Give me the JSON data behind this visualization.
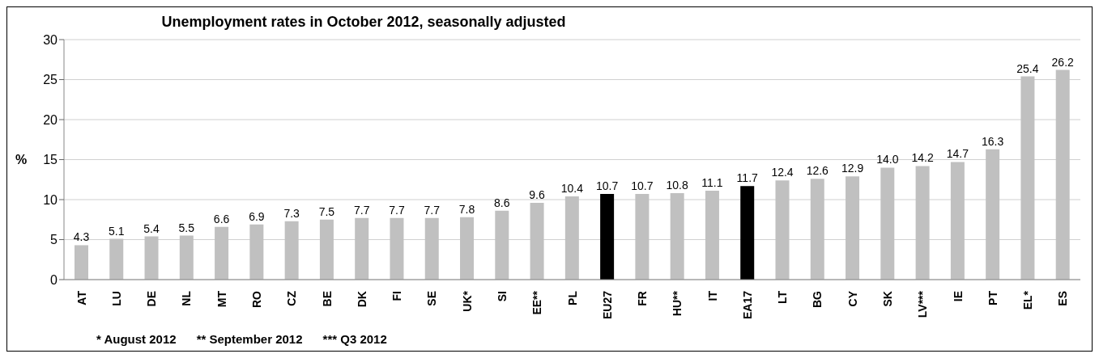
{
  "chart_data": {
    "type": "bar",
    "title": "Unemployment rates in October 2012, seasonally adjusted",
    "ylabel": "%",
    "categories": [
      "AT",
      "LU",
      "DE",
      "NL",
      "MT",
      "RO",
      "CZ",
      "BE",
      "DK",
      "FI",
      "SE",
      "UK*",
      "SI",
      "EE**",
      "PL",
      "EU27",
      "FR",
      "HU**",
      "IT",
      "EA17",
      "LT",
      "BG",
      "CY",
      "SK",
      "LV***",
      "IE",
      "PT",
      "EL*",
      "ES"
    ],
    "values": [
      4.3,
      5.1,
      5.4,
      5.5,
      6.6,
      6.9,
      7.3,
      7.5,
      7.7,
      7.7,
      7.7,
      7.8,
      8.6,
      9.6,
      10.4,
      10.7,
      10.7,
      10.8,
      11.1,
      11.7,
      12.4,
      12.6,
      12.9,
      14.0,
      14.2,
      14.7,
      16.3,
      25.4,
      26.2
    ],
    "value_labels": [
      "4.3",
      "5.1",
      "5.4",
      "5.5",
      "6.6",
      "6.9",
      "7.3",
      "7.5",
      "7.7",
      "7.7",
      "7.7",
      "7.8",
      "8.6",
      "9.6",
      "10.4",
      "10.7",
      "10.7",
      "10.8",
      "11.1",
      "11.7",
      "12.4",
      "12.6",
      "12.9",
      "14.0",
      "14.2",
      "14.7",
      "16.3",
      "25.4",
      "26.2"
    ],
    "colors": [
      "#c0c0c0",
      "#c0c0c0",
      "#c0c0c0",
      "#c0c0c0",
      "#c0c0c0",
      "#c0c0c0",
      "#c0c0c0",
      "#c0c0c0",
      "#c0c0c0",
      "#c0c0c0",
      "#c0c0c0",
      "#c0c0c0",
      "#c0c0c0",
      "#c0c0c0",
      "#c0c0c0",
      "#000000",
      "#c0c0c0",
      "#c0c0c0",
      "#c0c0c0",
      "#000000",
      "#c0c0c0",
      "#c0c0c0",
      "#c0c0c0",
      "#c0c0c0",
      "#c0c0c0",
      "#c0c0c0",
      "#c0c0c0",
      "#c0c0c0",
      "#c0c0c0"
    ],
    "ylim": [
      0,
      30
    ],
    "yticks": [
      0,
      5,
      10,
      15,
      20,
      25,
      30
    ],
    "grid": "y",
    "annotations": [
      "* August 2012      ** September 2012      *** Q3 2012"
    ]
  }
}
